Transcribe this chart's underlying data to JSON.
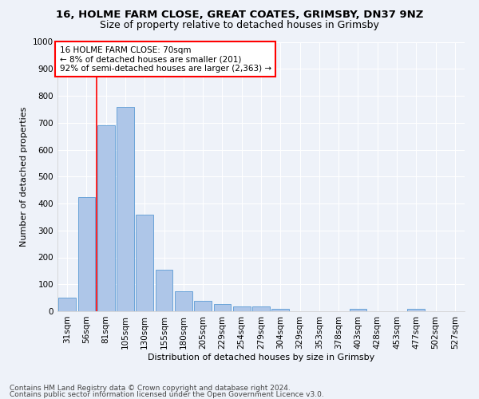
{
  "title1": "16, HOLME FARM CLOSE, GREAT COATES, GRIMSBY, DN37 9NZ",
  "title2": "Size of property relative to detached houses in Grimsby",
  "xlabel": "Distribution of detached houses by size in Grimsby",
  "ylabel": "Number of detached properties",
  "categories": [
    "31sqm",
    "56sqm",
    "81sqm",
    "105sqm",
    "130sqm",
    "155sqm",
    "180sqm",
    "205sqm",
    "229sqm",
    "254sqm",
    "279sqm",
    "304sqm",
    "329sqm",
    "353sqm",
    "378sqm",
    "403sqm",
    "428sqm",
    "453sqm",
    "477sqm",
    "502sqm",
    "527sqm"
  ],
  "values": [
    50,
    425,
    690,
    760,
    360,
    155,
    75,
    40,
    27,
    18,
    18,
    10,
    0,
    0,
    0,
    8,
    0,
    0,
    10,
    0,
    0
  ],
  "bar_color": "#aec6e8",
  "bar_edge_color": "#5b9bd5",
  "vline_color": "red",
  "annotation_text": "16 HOLME FARM CLOSE: 70sqm\n← 8% of detached houses are smaller (201)\n92% of semi-detached houses are larger (2,363) →",
  "annotation_box_color": "white",
  "annotation_box_edge": "red",
  "ylim": [
    0,
    1000
  ],
  "yticks": [
    0,
    100,
    200,
    300,
    400,
    500,
    600,
    700,
    800,
    900,
    1000
  ],
  "footer1": "Contains HM Land Registry data © Crown copyright and database right 2024.",
  "footer2": "Contains public sector information licensed under the Open Government Licence v3.0.",
  "background_color": "#eef2f9",
  "grid_color": "#ffffff",
  "title1_fontsize": 9.5,
  "title2_fontsize": 9,
  "axis_label_fontsize": 8,
  "tick_fontsize": 7.5,
  "annotation_fontsize": 7.5,
  "footer_fontsize": 6.5
}
